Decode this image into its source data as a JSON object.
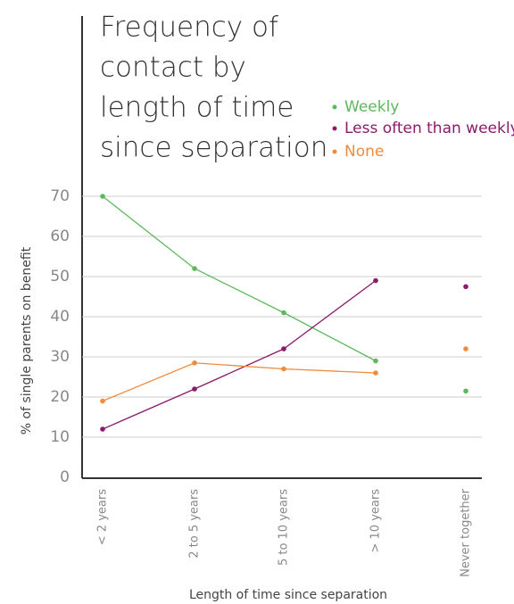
{
  "chart_data": {
    "type": "line",
    "title_lines": [
      "Frequency of",
      "contact by",
      "length of time",
      "since separation"
    ],
    "x_label": "Length of time since separation",
    "y_label": "% of single parents on benefit",
    "categories": [
      "< 2 years",
      "2 to 5 years",
      "5 to 10 years",
      "> 10 years",
      "Never together"
    ],
    "connected_count": 4,
    "series": [
      {
        "name": "Weekly",
        "color": "#5cb85c",
        "values": [
          70,
          52,
          41,
          29,
          21.5
        ]
      },
      {
        "name": "Less often than weekly",
        "color": "#8b1a6b",
        "values": [
          12,
          22,
          32,
          49,
          47.5
        ]
      },
      {
        "name": "None",
        "color": "#f08a3c",
        "values": [
          19,
          28.5,
          27,
          26,
          32
        ]
      }
    ],
    "ylim": [
      0,
      70
    ],
    "yticks": [
      0,
      10,
      20,
      30,
      40,
      50,
      60,
      70
    ],
    "grid": true
  }
}
